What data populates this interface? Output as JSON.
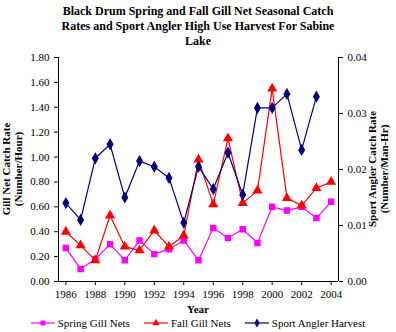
{
  "chart_data": {
    "type": "line",
    "title": "Black Drum Spring and Fall Gill Net Seasonal Catch Rates and Sport Angler High Use Harvest For Sabine Lake",
    "x_label": "Year",
    "y_label": "Gill Net Catch Rate (Number/Hour)",
    "y2_label": "Sport Angler Catch Rate (Number/Man-Hr)",
    "x": [
      1986,
      1987,
      1988,
      1989,
      1990,
      1991,
      1992,
      1993,
      1994,
      1995,
      1996,
      1997,
      1998,
      1999,
      2000,
      2001,
      2002,
      2003,
      2004
    ],
    "xlim": [
      1985.5,
      2004.5
    ],
    "xticks": [
      1986,
      1988,
      1990,
      1992,
      1994,
      1996,
      1998,
      2000,
      2002,
      2004
    ],
    "ylim": [
      0,
      1.8
    ],
    "yticks": [
      {
        "value": 0,
        "label": "0.00"
      },
      {
        "value": 0.2,
        "label": "0.20"
      },
      {
        "value": 0.4,
        "label": "0.40"
      },
      {
        "value": 0.6,
        "label": "0.60"
      },
      {
        "value": 0.8,
        "label": "0.80"
      },
      {
        "value": 1.0,
        "label": "1.00"
      },
      {
        "value": 1.2,
        "label": "1.20"
      },
      {
        "value": 1.4,
        "label": "1.40"
      },
      {
        "value": 1.6,
        "label": "1.60"
      },
      {
        "value": 1.8,
        "label": "1.80"
      }
    ],
    "y2lim": [
      0,
      0.04
    ],
    "y2ticks": [
      {
        "value": 0,
        "label": "0.00"
      },
      {
        "value": 0.01,
        "label": "0.01"
      },
      {
        "value": 0.02,
        "label": "0.02"
      },
      {
        "value": 0.03,
        "label": "0.03"
      },
      {
        "value": 0.04,
        "label": "0.04"
      }
    ],
    "grid": false,
    "legend": "bottom",
    "series": [
      {
        "name": "Spring Gill Nets",
        "color": "#ff00ff",
        "marker": "square",
        "line_style": "solid",
        "values": [
          0.27,
          0.1,
          0.18,
          0.3,
          0.17,
          0.33,
          0.22,
          0.26,
          0.33,
          0.17,
          0.43,
          0.35,
          0.42,
          0.31,
          0.6,
          0.57,
          0.6,
          0.51,
          0.64
        ]
      },
      {
        "name": "Fall Gill Nets",
        "color": "#ff0000",
        "marker": "triangle",
        "line_style": "solid",
        "values": [
          0.4,
          0.29,
          0.17,
          0.53,
          0.28,
          0.25,
          0.41,
          0.28,
          0.37,
          0.98,
          0.62,
          1.15,
          0.63,
          0.73,
          1.55,
          0.67,
          0.61,
          0.75,
          0.8
        ]
      },
      {
        "name": "Sport Angler Harvest",
        "color": "#000080",
        "marker": "diamond",
        "line_style": "solid",
        "axis": "y2",
        "values": [
          0.014,
          0.011,
          0.022,
          0.0245,
          0.015,
          0.0215,
          0.0205,
          0.0185,
          0.0105,
          0.0205,
          0.0165,
          0.023,
          0.0155,
          0.031,
          0.031,
          0.0335,
          0.0235,
          0.033,
          null
        ]
      }
    ]
  }
}
